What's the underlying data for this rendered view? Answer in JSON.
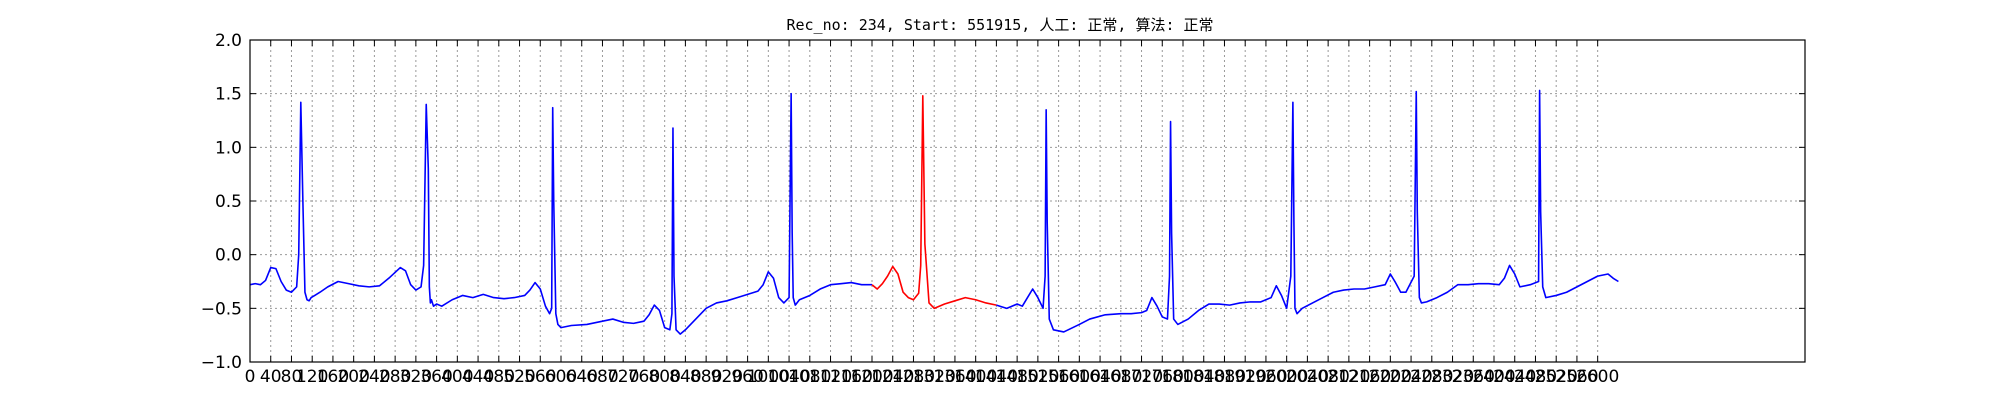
{
  "chart_data": {
    "type": "line",
    "title": "Rec_no: 234, Start: 551915, 人工: 正常, 算法: 正常",
    "xlabel": "",
    "ylabel": "",
    "xlim": [
      0,
      3000
    ],
    "ylim": [
      -1.0,
      2.0
    ],
    "grid": true,
    "y_ticks": [
      "−1.0",
      "−0.5",
      "0.0",
      "0.5",
      "1.0",
      "1.5",
      "2.0"
    ],
    "x_tick_step": 40,
    "x_tick_labels": [
      "0",
      "40",
      "80",
      "120",
      "160",
      "200",
      "240",
      "280",
      "320",
      "360",
      "400",
      "440",
      "480",
      "520",
      "560",
      "600",
      "640",
      "680",
      "720",
      "760",
      "800",
      "840",
      "880",
      "920",
      "960",
      "1000",
      "1040",
      "1080",
      "1120",
      "1160",
      "1200",
      "1240",
      "1280",
      "1320",
      "1360",
      "1400",
      "1440",
      "1480",
      "1520",
      "1560",
      "1600",
      "1640",
      "1680",
      "1720",
      "1760",
      "1800",
      "1840",
      "1880",
      "1920",
      "1960",
      "2000",
      "2040",
      "2080",
      "2120",
      "2160",
      "2200",
      "2240",
      "2280",
      "2320",
      "2360",
      "2400",
      "2440",
      "2480",
      "2520",
      "2560",
      "2600"
    ],
    "colors": {
      "normal": "#0000ff",
      "highlight": "#ff0000",
      "grid": "#999999"
    },
    "series": [
      {
        "color": "#0000ff",
        "x": [
          0,
          10,
          20,
          30,
          40,
          50,
          60,
          70,
          80,
          90,
          94,
          98,
          102,
          106,
          110,
          114,
          118,
          125,
          135,
          150,
          170,
          190,
          210,
          230,
          250,
          270,
          290,
          300,
          310,
          320,
          330,
          335,
          340,
          344,
          346,
          348,
          350,
          354,
          360,
          370,
          390,
          410,
          430,
          450,
          470,
          490,
          510,
          530,
          540,
          550,
          560,
          570,
          578,
          582,
          584,
          586,
          590,
          594,
          600,
          620,
          650,
          680,
          700,
          720,
          740,
          760,
          770,
          780,
          790,
          800,
          810,
          814,
          816,
          818,
          822,
          830,
          840,
          860,
          880,
          900,
          920,
          940,
          960,
          980,
          990,
          1000,
          1010,
          1020,
          1030,
          1040,
          1044,
          1046,
          1048,
          1052,
          1060,
          1080,
          1100,
          1120,
          1140,
          1160,
          1180,
          1200
        ],
        "y": [
          -0.28,
          -0.27,
          -0.28,
          -0.24,
          -0.12,
          -0.13,
          -0.25,
          -0.33,
          -0.35,
          -0.3,
          0.0,
          1.42,
          0.5,
          -0.35,
          -0.42,
          -0.43,
          -0.4,
          -0.38,
          -0.35,
          -0.3,
          -0.25,
          -0.27,
          -0.29,
          -0.3,
          -0.29,
          -0.21,
          -0.12,
          -0.15,
          -0.28,
          -0.33,
          -0.3,
          -0.1,
          1.4,
          0.8,
          -0.3,
          -0.45,
          -0.42,
          -0.48,
          -0.46,
          -0.48,
          -0.42,
          -0.38,
          -0.4,
          -0.37,
          -0.4,
          -0.41,
          -0.4,
          -0.38,
          -0.33,
          -0.26,
          -0.32,
          -0.48,
          -0.55,
          -0.5,
          1.37,
          0.5,
          -0.55,
          -0.65,
          -0.68,
          -0.66,
          -0.65,
          -0.62,
          -0.6,
          -0.63,
          -0.64,
          -0.62,
          -0.56,
          -0.47,
          -0.52,
          -0.68,
          -0.7,
          -0.55,
          1.18,
          -0.2,
          -0.7,
          -0.74,
          -0.7,
          -0.6,
          -0.5,
          -0.45,
          -0.43,
          -0.4,
          -0.37,
          -0.34,
          -0.28,
          -0.16,
          -0.22,
          -0.4,
          -0.45,
          -0.4,
          1.5,
          0.2,
          -0.4,
          -0.47,
          -0.42,
          -0.38,
          -0.32,
          -0.28,
          -0.27,
          -0.26,
          -0.28,
          -0.28
        ]
      },
      {
        "color": "#ff0000",
        "x": [
          1200,
          1210,
          1220,
          1230,
          1240,
          1250,
          1260,
          1270,
          1280,
          1290,
          1294,
          1298,
          1302,
          1310,
          1320,
          1340,
          1360,
          1380,
          1400,
          1420,
          1440
        ],
        "y": [
          -0.28,
          -0.32,
          -0.27,
          -0.2,
          -0.11,
          -0.18,
          -0.35,
          -0.4,
          -0.42,
          -0.36,
          -0.1,
          1.48,
          0.1,
          -0.45,
          -0.5,
          -0.46,
          -0.43,
          -0.4,
          -0.42,
          -0.45,
          -0.47
        ]
      },
      {
        "color": "#0000ff",
        "x": [
          1440,
          1460,
          1480,
          1490,
          1500,
          1510,
          1520,
          1530,
          1534,
          1536,
          1538,
          1542,
          1550,
          1570,
          1600,
          1620,
          1650,
          1680,
          1700,
          1720,
          1730,
          1740,
          1750,
          1760,
          1770,
          1774,
          1776,
          1778,
          1782,
          1790,
          1810,
          1830,
          1850,
          1870,
          1890,
          1910,
          1930,
          1950,
          1970,
          1980,
          1990,
          2000,
          2008,
          2012,
          2014,
          2016,
          2020,
          2030,
          2050,
          2070,
          2090,
          2110,
          2130,
          2150,
          2170,
          2190,
          2200,
          2210,
          2220,
          2230,
          2246,
          2250,
          2252,
          2256,
          2260,
          2270,
          2290,
          2310,
          2330,
          2350,
          2370,
          2390,
          2410,
          2420,
          2430,
          2440,
          2450,
          2470,
          2486,
          2488,
          2490,
          2494,
          2500,
          2520,
          2540,
          2560,
          2580,
          2600,
          2620,
          2630,
          2640
        ],
        "y": [
          -0.47,
          -0.5,
          -0.46,
          -0.48,
          -0.4,
          -0.32,
          -0.4,
          -0.5,
          -0.2,
          1.35,
          0.3,
          -0.6,
          -0.7,
          -0.72,
          -0.65,
          -0.6,
          -0.56,
          -0.55,
          -0.55,
          -0.54,
          -0.52,
          -0.4,
          -0.48,
          -0.58,
          -0.6,
          -0.2,
          1.24,
          0.2,
          -0.6,
          -0.65,
          -0.6,
          -0.52,
          -0.46,
          -0.46,
          -0.47,
          -0.45,
          -0.44,
          -0.44,
          -0.4,
          -0.29,
          -0.38,
          -0.5,
          -0.2,
          1.42,
          0.3,
          -0.5,
          -0.55,
          -0.5,
          -0.45,
          -0.4,
          -0.35,
          -0.33,
          -0.32,
          -0.32,
          -0.3,
          -0.28,
          -0.18,
          -0.26,
          -0.35,
          -0.35,
          -0.2,
          1.52,
          0.4,
          -0.4,
          -0.45,
          -0.44,
          -0.4,
          -0.35,
          -0.28,
          -0.28,
          -0.27,
          -0.27,
          -0.28,
          -0.22,
          -0.1,
          -0.18,
          -0.3,
          -0.28,
          -0.25,
          1.53,
          0.4,
          -0.3,
          -0.4,
          -0.38,
          -0.35,
          -0.3,
          -0.25,
          -0.2,
          -0.18,
          -0.22,
          -0.25
        ]
      }
    ]
  }
}
